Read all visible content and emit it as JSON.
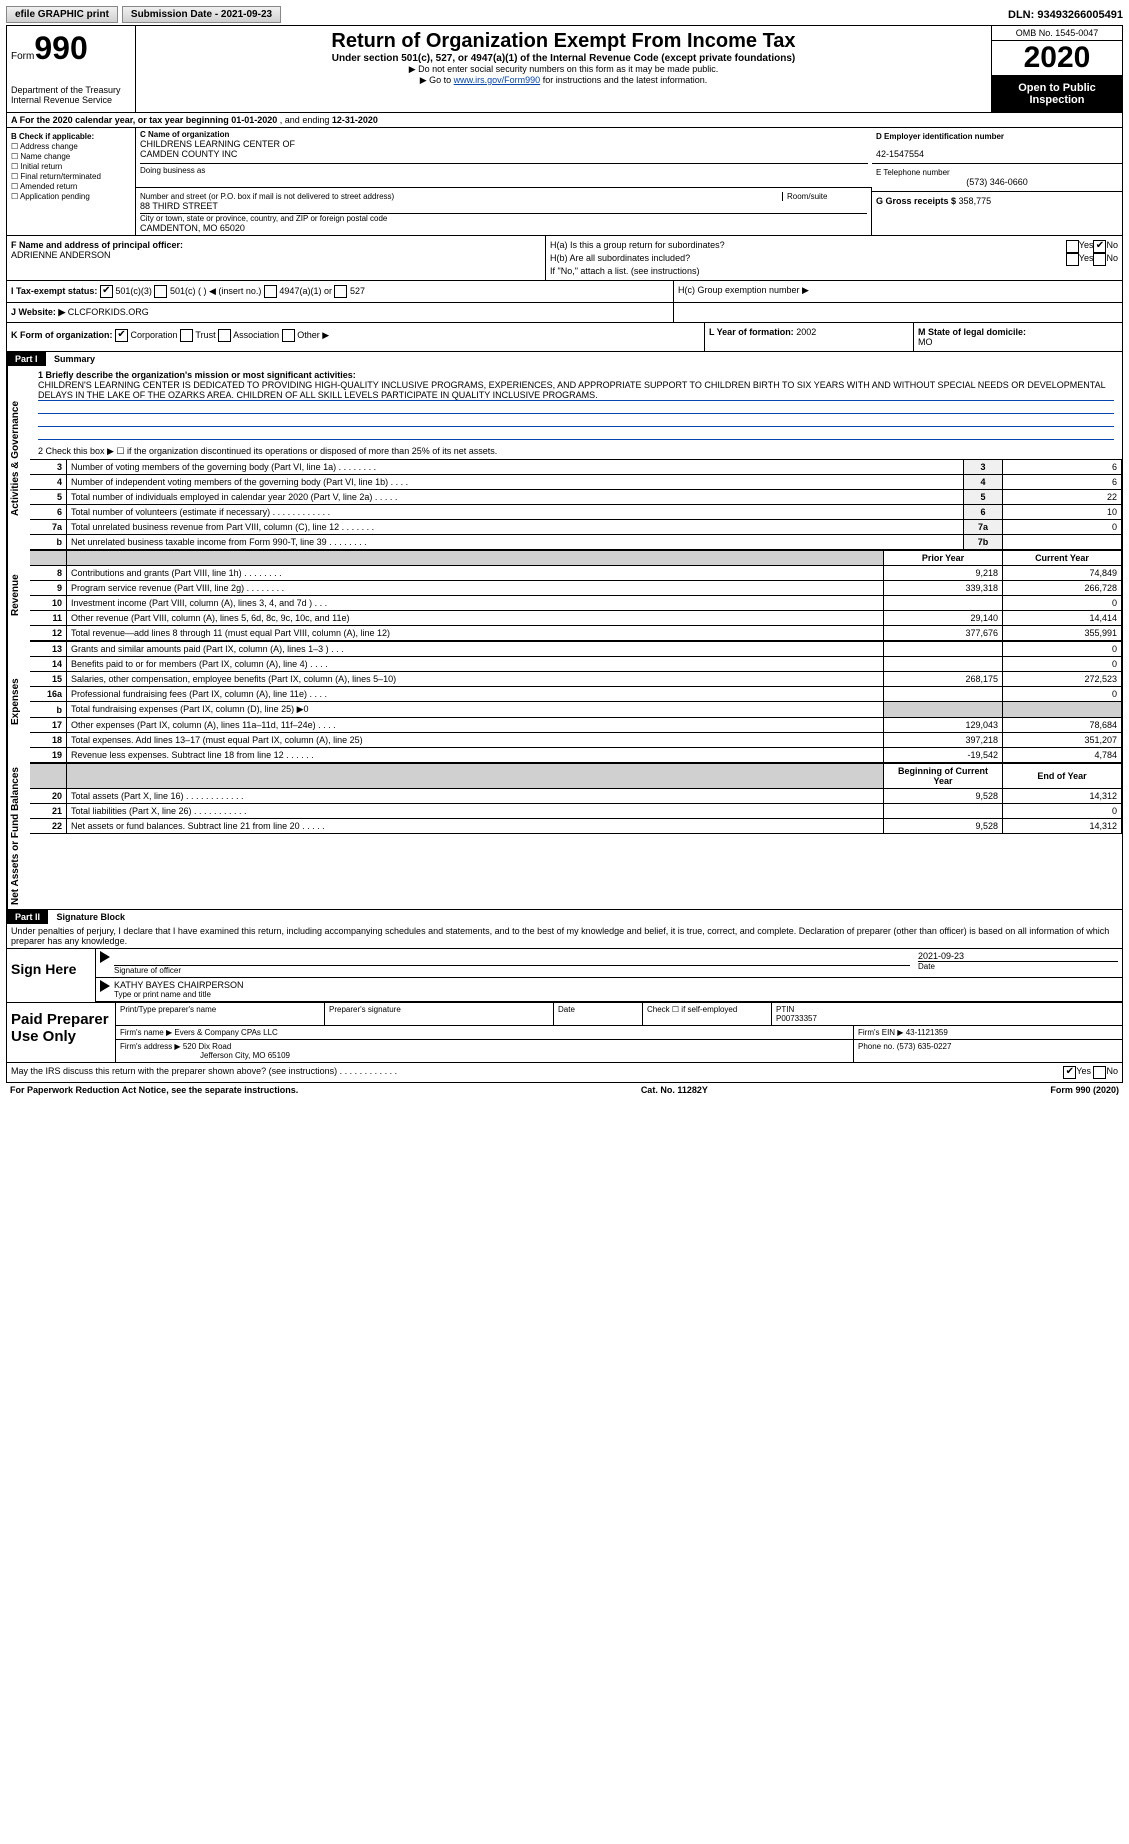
{
  "topbar": {
    "efile": "efile GRAPHIC print",
    "submission_label": "Submission Date - ",
    "submission_date": "2021-09-23",
    "dln_label": "DLN: ",
    "dln": "93493266005491"
  },
  "header": {
    "form_word": "Form",
    "form_no": "990",
    "dept1": "Department of the Treasury",
    "dept2": "Internal Revenue Service",
    "title": "Return of Organization Exempt From Income Tax",
    "sub": "Under section 501(c), 527, or 4947(a)(1) of the Internal Revenue Code (except private foundations)",
    "note1": "▶ Do not enter social security numbers on this form as it may be made public.",
    "note2_pre": "▶ Go to ",
    "note2_link": "www.irs.gov/Form990",
    "note2_post": " for instructions and the latest information.",
    "omb": "OMB No. 1545-0047",
    "year": "2020",
    "open": "Open to Public Inspection"
  },
  "line_a": {
    "prefix": "A For the 2020 calendar year, or tax year beginning ",
    "begin": "01-01-2020",
    "mid": " , and ending ",
    "end": "12-31-2020"
  },
  "section_b": {
    "title": "B Check if applicable:",
    "items": [
      "Address change",
      "Name change",
      "Initial return",
      "Final return/terminated",
      "Amended return",
      "Application pending"
    ]
  },
  "section_c": {
    "label": "C Name of organization",
    "org1": "CHILDRENS LEARNING CENTER OF",
    "org2": "CAMDEN COUNTY INC",
    "dba_label": "Doing business as",
    "addr_label": "Number and street (or P.O. box if mail is not delivered to street address)",
    "room_label": "Room/suite",
    "addr": "88 THIRD STREET",
    "city_label": "City or town, state or province, country, and ZIP or foreign postal code",
    "city": "CAMDENTON, MO  65020"
  },
  "section_d": {
    "ein_label": "D Employer identification number",
    "ein": "42-1547554",
    "tel_label": "E Telephone number",
    "tel": "(573) 346-0660",
    "gross_label": "G Gross receipts $ ",
    "gross": "358,775"
  },
  "section_f": {
    "label": "F  Name and address of principal officer:",
    "name": "ADRIENNE ANDERSON"
  },
  "section_h": {
    "ha": "H(a)  Is this a group return for subordinates?",
    "hb": "H(b)  Are all subordinates included?",
    "hb_note": "If \"No,\" attach a list. (see instructions)",
    "hc": "H(c)  Group exemption number ▶",
    "yes": "Yes",
    "no": "No"
  },
  "section_i": {
    "label": "I  Tax-exempt status:",
    "opt1": "501(c)(3)",
    "opt2": "501(c) (  ) ◀ (insert no.)",
    "opt3": "4947(a)(1) or",
    "opt4": "527"
  },
  "section_j": {
    "label": "J  Website: ▶",
    "val": "CLCFORKIDS.ORG"
  },
  "section_k": {
    "label": "K Form of organization:",
    "opts": [
      "Corporation",
      "Trust",
      "Association",
      "Other ▶"
    ]
  },
  "section_l": {
    "label": "L Year of formation: ",
    "val": "2002"
  },
  "section_m": {
    "label": "M State of legal domicile:",
    "val": "MO"
  },
  "part1": {
    "tag": "Part I",
    "title": "Summary",
    "vtab_gov": "Activities & Governance",
    "vtab_rev": "Revenue",
    "vtab_exp": "Expenses",
    "vtab_net": "Net Assets or Fund Balances",
    "line1_label": "1  Briefly describe the organization's mission or most significant activities:",
    "mission": "CHILDREN'S LEARNING CENTER IS DEDICATED TO PROVIDING HIGH-QUALITY INCLUSIVE PROGRAMS, EXPERIENCES, AND APPROPRIATE SUPPORT TO CHILDREN BIRTH TO SIX YEARS WITH AND WITHOUT SPECIAL NEEDS OR DEVELOPMENTAL DELAYS IN THE LAKE OF THE OZARKS AREA. CHILDREN OF ALL SKILL LEVELS PARTICIPATE IN QUALITY INCLUSIVE PROGRAMS.",
    "line2": "2  Check this box ▶ ☐ if the organization discontinued its operations or disposed of more than 25% of its net assets.",
    "rows_gov": [
      {
        "n": "3",
        "lbl": "Number of voting members of the governing body (Part VI, line 1a)   .   .   .   .   .   .   .   .",
        "box": "3",
        "val": "6"
      },
      {
        "n": "4",
        "lbl": "Number of independent voting members of the governing body (Part VI, line 1b)   .   .   .   .",
        "box": "4",
        "val": "6"
      },
      {
        "n": "5",
        "lbl": "Total number of individuals employed in calendar year 2020 (Part V, line 2a)   .   .   .   .   .",
        "box": "5",
        "val": "22"
      },
      {
        "n": "6",
        "lbl": "Total number of volunteers (estimate if necessary)   .   .   .   .   .   .   .   .   .   .   .   .",
        "box": "6",
        "val": "10"
      },
      {
        "n": "7a",
        "lbl": "Total unrelated business revenue from Part VIII, column (C), line 12   .   .   .   .   .   .   .",
        "box": "7a",
        "val": "0"
      },
      {
        "n": "b",
        "lbl": "Net unrelated business taxable income from Form 990-T, line 39   .   .   .   .   .   .   .   .",
        "box": "7b",
        "val": ""
      }
    ],
    "col_prior": "Prior Year",
    "col_current": "Current Year",
    "rows_rev": [
      {
        "n": "8",
        "lbl": "Contributions and grants (Part VIII, line 1h)   .   .   .   .   .   .   .   .",
        "p": "9,218",
        "c": "74,849"
      },
      {
        "n": "9",
        "lbl": "Program service revenue (Part VIII, line 2g)   .   .   .   .   .   .   .   .",
        "p": "339,318",
        "c": "266,728"
      },
      {
        "n": "10",
        "lbl": "Investment income (Part VIII, column (A), lines 3, 4, and 7d )   .   .   .",
        "p": "",
        "c": "0"
      },
      {
        "n": "11",
        "lbl": "Other revenue (Part VIII, column (A), lines 5, 6d, 8c, 9c, 10c, and 11e)",
        "p": "29,140",
        "c": "14,414"
      },
      {
        "n": "12",
        "lbl": "Total revenue—add lines 8 through 11 (must equal Part VIII, column (A), line 12)",
        "p": "377,676",
        "c": "355,991"
      }
    ],
    "rows_exp": [
      {
        "n": "13",
        "lbl": "Grants and similar amounts paid (Part IX, column (A), lines 1–3 )   .   .   .",
        "p": "",
        "c": "0"
      },
      {
        "n": "14",
        "lbl": "Benefits paid to or for members (Part IX, column (A), line 4)   .   .   .   .",
        "p": "",
        "c": "0"
      },
      {
        "n": "15",
        "lbl": "Salaries, other compensation, employee benefits (Part IX, column (A), lines 5–10)",
        "p": "268,175",
        "c": "272,523"
      },
      {
        "n": "16a",
        "lbl": "Professional fundraising fees (Part IX, column (A), line 11e)   .   .   .   .",
        "p": "",
        "c": "0"
      },
      {
        "n": "b",
        "lbl": "Total fundraising expenses (Part IX, column (D), line 25) ▶0",
        "p": "shade",
        "c": "shade"
      },
      {
        "n": "17",
        "lbl": "Other expenses (Part IX, column (A), lines 11a–11d, 11f–24e)   .   .   .   .",
        "p": "129,043",
        "c": "78,684"
      },
      {
        "n": "18",
        "lbl": "Total expenses. Add lines 13–17 (must equal Part IX, column (A), line 25)",
        "p": "397,218",
        "c": "351,207"
      },
      {
        "n": "19",
        "lbl": "Revenue less expenses. Subtract line 18 from line 12   .   .   .   .   .   .",
        "p": "-19,542",
        "c": "4,784"
      }
    ],
    "col_begin": "Beginning of Current Year",
    "col_end": "End of Year",
    "rows_net": [
      {
        "n": "20",
        "lbl": "Total assets (Part X, line 16)   .   .   .   .   .   .   .   .   .   .   .   .",
        "p": "9,528",
        "c": "14,312"
      },
      {
        "n": "21",
        "lbl": "Total liabilities (Part X, line 26)   .   .   .   .   .   .   .   .   .   .   .",
        "p": "",
        "c": "0"
      },
      {
        "n": "22",
        "lbl": "Net assets or fund balances. Subtract line 21 from line 20   .   .   .   .   .",
        "p": "9,528",
        "c": "14,312"
      }
    ]
  },
  "part2": {
    "tag": "Part II",
    "title": "Signature Block",
    "decl": "Under penalties of perjury, I declare that I have examined this return, including accompanying schedules and statements, and to the best of my knowledge and belief, it is true, correct, and complete. Declaration of preparer (other than officer) is based on all information of which preparer has any knowledge.",
    "sign_here": "Sign Here",
    "sig_officer": "Signature of officer",
    "sig_date": "2021-09-23",
    "date_lbl": "Date",
    "sig_name": "KATHY BAYES CHAIRPERSON",
    "sig_name_lbl": "Type or print name and title",
    "paid": "Paid Preparer Use Only",
    "prep_name_lbl": "Print/Type preparer's name",
    "prep_sig_lbl": "Preparer's signature",
    "prep_date_lbl": "Date",
    "prep_check_lbl": "Check ☐ if self-employed",
    "ptin_lbl": "PTIN",
    "ptin": "P00733357",
    "firm_name_lbl": "Firm's name    ▶ ",
    "firm_name": "Evers & Company CPAs LLC",
    "firm_ein_lbl": "Firm's EIN ▶ ",
    "firm_ein": "43-1121359",
    "firm_addr_lbl": "Firm's address ▶ ",
    "firm_addr1": "520 Dix Road",
    "firm_addr2": "Jefferson City, MO  65109",
    "firm_phone_lbl": "Phone no. ",
    "firm_phone": "(573) 635-0227",
    "discuss": "May the IRS discuss this return with the preparer shown above? (see instructions)   .   .   .   .   .   .   .   .   .   .   .   .",
    "yes": "Yes",
    "no": "No"
  },
  "footer": {
    "left": "For Paperwork Reduction Act Notice, see the separate instructions.",
    "mid": "Cat. No. 11282Y",
    "right": "Form 990 (2020)"
  }
}
